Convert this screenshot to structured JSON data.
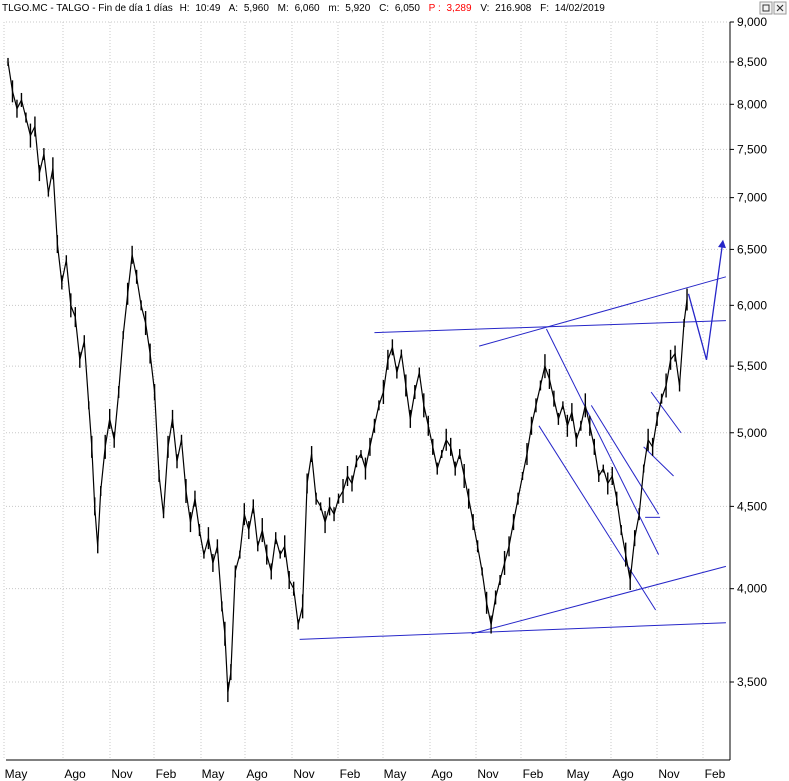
{
  "header": {
    "symbol": "TLGO.MC - TALGO - Fin de día 1 días",
    "h_label": "H:",
    "h_value": "10:49",
    "a_label": "A:",
    "a_value": "5,960",
    "m_label": "M:",
    "m_value": "6,060",
    "min_label": "m:",
    "min_value": "5,920",
    "c_label": "C:",
    "c_value": "6,050",
    "p_label": "P :",
    "p_value": "3,289",
    "v_label": "V:",
    "v_value": "216.908",
    "f_label": "F:",
    "f_value": "14/02/2019"
  },
  "controls": {
    "max_icon": "maximize-icon",
    "close_icon": "close-icon"
  },
  "chart_data": {
    "type": "line",
    "scale": "log",
    "y_ticks": [
      {
        "label": "9,000",
        "value": 9.0
      },
      {
        "label": "8,500",
        "value": 8.5
      },
      {
        "label": "8,000",
        "value": 8.0
      },
      {
        "label": "7,500",
        "value": 7.5
      },
      {
        "label": "7,000",
        "value": 7.0
      },
      {
        "label": "6,500",
        "value": 6.5
      },
      {
        "label": "6,000",
        "value": 6.0
      },
      {
        "label": "5,500",
        "value": 5.5
      },
      {
        "label": "5,000",
        "value": 5.0
      },
      {
        "label": "4,500",
        "value": 4.5
      },
      {
        "label": "4,000",
        "value": 4.0
      },
      {
        "label": "3,500",
        "value": 3.5
      }
    ],
    "x_ticks": [
      "May",
      "Ago",
      "Nov",
      "Feb",
      "May",
      "Ago",
      "Nov",
      "Feb",
      "May",
      "Ago",
      "Nov",
      "Feb",
      "May",
      "Ago",
      "Nov",
      "Feb"
    ],
    "x_range": [
      0,
      46
    ],
    "series": [
      {
        "color": "#000000",
        "points": [
          [
            0.0,
            8.5
          ],
          [
            0.3,
            8.15
          ],
          [
            0.6,
            7.95
          ],
          [
            0.9,
            8.05
          ],
          [
            1.2,
            7.85
          ],
          [
            1.5,
            7.65
          ],
          [
            1.8,
            7.75
          ],
          [
            2.1,
            7.25
          ],
          [
            2.4,
            7.45
          ],
          [
            2.7,
            7.05
          ],
          [
            3.0,
            7.3
          ],
          [
            3.3,
            6.55
          ],
          [
            3.6,
            6.2
          ],
          [
            3.9,
            6.4
          ],
          [
            4.2,
            6.0
          ],
          [
            4.5,
            5.9
          ],
          [
            4.8,
            5.55
          ],
          [
            5.1,
            5.7
          ],
          [
            5.4,
            5.2
          ],
          [
            5.6,
            4.9
          ],
          [
            5.8,
            4.5
          ],
          [
            6.0,
            4.25
          ],
          [
            6.2,
            4.6
          ],
          [
            6.5,
            4.9
          ],
          [
            6.8,
            5.1
          ],
          [
            7.1,
            4.95
          ],
          [
            7.4,
            5.3
          ],
          [
            7.7,
            5.75
          ],
          [
            8.0,
            6.1
          ],
          [
            8.3,
            6.45
          ],
          [
            8.6,
            6.25
          ],
          [
            8.9,
            6.0
          ],
          [
            9.2,
            5.85
          ],
          [
            9.5,
            5.6
          ],
          [
            9.8,
            5.3
          ],
          [
            10.1,
            4.7
          ],
          [
            10.4,
            4.45
          ],
          [
            10.7,
            4.9
          ],
          [
            11.0,
            5.1
          ],
          [
            11.3,
            4.8
          ],
          [
            11.6,
            4.95
          ],
          [
            11.9,
            4.6
          ],
          [
            12.2,
            4.4
          ],
          [
            12.5,
            4.55
          ],
          [
            12.8,
            4.35
          ],
          [
            13.1,
            4.2
          ],
          [
            13.4,
            4.3
          ],
          [
            13.7,
            4.15
          ],
          [
            14.0,
            4.25
          ],
          [
            14.3,
            3.9
          ],
          [
            14.5,
            3.75
          ],
          [
            14.7,
            3.45
          ],
          [
            14.9,
            3.55
          ],
          [
            15.2,
            4.1
          ],
          [
            15.5,
            4.2
          ],
          [
            15.8,
            4.45
          ],
          [
            16.1,
            4.35
          ],
          [
            16.4,
            4.5
          ],
          [
            16.7,
            4.25
          ],
          [
            17.0,
            4.35
          ],
          [
            17.3,
            4.2
          ],
          [
            17.6,
            4.1
          ],
          [
            17.9,
            4.3
          ],
          [
            18.2,
            4.2
          ],
          [
            18.5,
            4.25
          ],
          [
            18.8,
            4.05
          ],
          [
            19.1,
            4.0
          ],
          [
            19.4,
            3.8
          ],
          [
            19.7,
            3.9
          ],
          [
            20.0,
            4.65
          ],
          [
            20.3,
            4.85
          ],
          [
            20.6,
            4.55
          ],
          [
            20.9,
            4.5
          ],
          [
            21.2,
            4.4
          ],
          [
            21.5,
            4.5
          ],
          [
            21.8,
            4.45
          ],
          [
            22.1,
            4.55
          ],
          [
            22.4,
            4.6
          ],
          [
            22.7,
            4.7
          ],
          [
            23.0,
            4.65
          ],
          [
            23.3,
            4.8
          ],
          [
            23.6,
            4.85
          ],
          [
            23.9,
            4.75
          ],
          [
            24.2,
            4.9
          ],
          [
            24.5,
            5.05
          ],
          [
            24.8,
            5.2
          ],
          [
            25.1,
            5.3
          ],
          [
            25.4,
            5.55
          ],
          [
            25.7,
            5.65
          ],
          [
            26.0,
            5.45
          ],
          [
            26.3,
            5.6
          ],
          [
            26.6,
            5.35
          ],
          [
            26.9,
            5.1
          ],
          [
            27.2,
            5.3
          ],
          [
            27.5,
            5.45
          ],
          [
            27.8,
            5.2
          ],
          [
            28.1,
            5.05
          ],
          [
            28.4,
            4.9
          ],
          [
            28.7,
            4.75
          ],
          [
            29.0,
            4.85
          ],
          [
            29.3,
            4.95
          ],
          [
            29.6,
            4.9
          ],
          [
            29.9,
            4.75
          ],
          [
            30.2,
            4.85
          ],
          [
            30.5,
            4.7
          ],
          [
            30.8,
            4.55
          ],
          [
            31.1,
            4.4
          ],
          [
            31.4,
            4.25
          ],
          [
            31.7,
            4.1
          ],
          [
            32.0,
            3.92
          ],
          [
            32.3,
            3.8
          ],
          [
            32.6,
            3.95
          ],
          [
            32.9,
            4.05
          ],
          [
            33.2,
            4.15
          ],
          [
            33.5,
            4.25
          ],
          [
            33.8,
            4.4
          ],
          [
            34.1,
            4.55
          ],
          [
            34.4,
            4.7
          ],
          [
            34.7,
            4.85
          ],
          [
            35.0,
            5.05
          ],
          [
            35.3,
            5.2
          ],
          [
            35.6,
            5.35
          ],
          [
            35.9,
            5.5
          ],
          [
            36.2,
            5.4
          ],
          [
            36.5,
            5.25
          ],
          [
            36.8,
            5.1
          ],
          [
            37.1,
            5.2
          ],
          [
            37.4,
            5.05
          ],
          [
            37.7,
            5.15
          ],
          [
            38.0,
            4.95
          ],
          [
            38.3,
            5.05
          ],
          [
            38.6,
            5.2
          ],
          [
            38.9,
            5.05
          ],
          [
            39.2,
            4.9
          ],
          [
            39.5,
            4.7
          ],
          [
            39.8,
            4.75
          ],
          [
            40.1,
            4.65
          ],
          [
            40.4,
            4.7
          ],
          [
            40.7,
            4.55
          ],
          [
            41.0,
            4.35
          ],
          [
            41.3,
            4.2
          ],
          [
            41.6,
            4.05
          ],
          [
            41.9,
            4.3
          ],
          [
            42.2,
            4.45
          ],
          [
            42.5,
            4.75
          ],
          [
            42.8,
            4.95
          ],
          [
            43.1,
            4.9
          ],
          [
            43.4,
            5.1
          ],
          [
            43.7,
            5.25
          ],
          [
            44.0,
            5.35
          ],
          [
            44.3,
            5.55
          ],
          [
            44.6,
            5.6
          ],
          [
            44.9,
            5.35
          ],
          [
            45.2,
            5.85
          ],
          [
            45.4,
            6.05
          ]
        ]
      }
    ],
    "annotations": {
      "color": "#2626c8",
      "lines": [
        [
          [
            19.5,
            3.72
          ],
          [
            48.0,
            3.81
          ]
        ],
        [
          [
            24.5,
            5.77
          ],
          [
            48.0,
            5.87
          ]
        ],
        [
          [
            31.5,
            5.66
          ],
          [
            48.0,
            6.25
          ]
        ],
        [
          [
            31.0,
            3.75
          ],
          [
            48.0,
            4.13
          ]
        ],
        [
          [
            36.0,
            5.8
          ],
          [
            43.5,
            4.2
          ]
        ],
        [
          [
            35.5,
            5.05
          ],
          [
            43.3,
            3.88
          ]
        ],
        [
          [
            39.0,
            5.2
          ],
          [
            43.5,
            4.45
          ]
        ],
        [
          [
            42.5,
            4.9
          ],
          [
            44.5,
            4.7
          ]
        ],
        [
          [
            43.0,
            5.3
          ],
          [
            45.0,
            5.0
          ]
        ],
        [
          [
            42.6,
            4.43
          ],
          [
            43.6,
            4.43
          ]
        ]
      ],
      "arrow_path": [
        [
          45.5,
          6.1
        ],
        [
          46.7,
          5.55
        ],
        [
          47.8,
          6.58
        ]
      ]
    }
  }
}
